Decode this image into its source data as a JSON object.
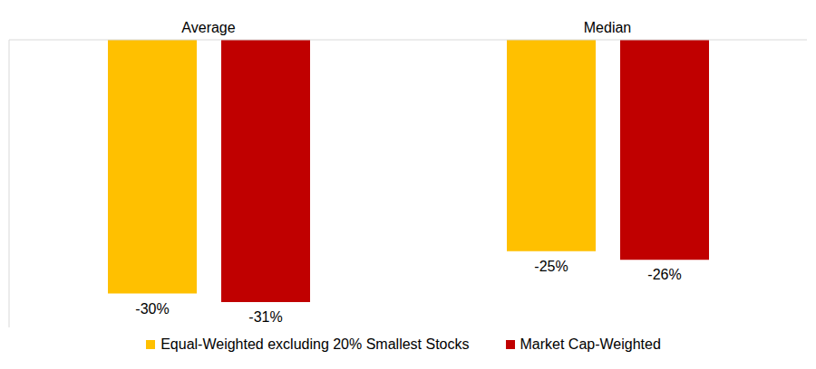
{
  "chart_data": {
    "type": "bar",
    "categories": [
      "Average",
      "Median"
    ],
    "series": [
      {
        "name": "Equal-Weighted excluding 20% Smallest Stocks",
        "color": "#ffc000",
        "values": [
          -30,
          -25
        ],
        "value_labels": [
          "-30%",
          "-25%"
        ]
      },
      {
        "name": "Market Cap-Weighted",
        "color": "#c00000",
        "values": [
          -31,
          -26
        ],
        "value_labels": [
          "-31%",
          "-26%"
        ]
      }
    ],
    "ylim": [
      -34,
      0
    ],
    "data_labels": true,
    "tick_labels": "x",
    "legend": "bottom",
    "grid": false
  }
}
